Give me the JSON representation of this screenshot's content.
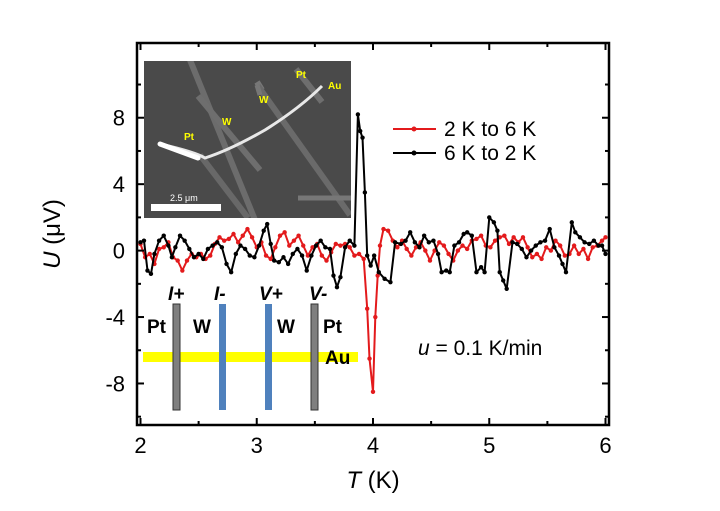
{
  "chart_data": {
    "type": "line",
    "title": "",
    "xlabel_italic": "T",
    "xlabel_unit": " (K)",
    "ylabel_italic": "U",
    "ylabel_unit": " (μV)",
    "xlim": [
      1.97,
      6.03
    ],
    "ylim": [
      -10.5,
      12.5
    ],
    "xticks": [
      2,
      3,
      4,
      5,
      6
    ],
    "yticks": [
      -8,
      -4,
      0,
      4,
      8
    ],
    "xtick_labels": [
      "2",
      "3",
      "4",
      "5",
      "6"
    ],
    "ytick_labels": [
      "-8",
      "-4",
      "0",
      "4",
      "8"
    ],
    "grid": false,
    "legend_position": "top-right",
    "annotation": {
      "italic": "u",
      "text": " = 0.1 K/min"
    },
    "series": [
      {
        "name": "2 K to 6 K",
        "color": "#e31a1c",
        "points": [
          [
            2.0,
            0.4
          ],
          [
            2.04,
            -0.4
          ],
          [
            2.08,
            -0.2
          ],
          [
            2.12,
            -0.8
          ],
          [
            2.16,
            0.1
          ],
          [
            2.2,
            0.2
          ],
          [
            2.24,
            0.5
          ],
          [
            2.28,
            -0.4
          ],
          [
            2.32,
            -0.6
          ],
          [
            2.36,
            -1.2
          ],
          [
            2.4,
            -0.6
          ],
          [
            2.44,
            -0.2
          ],
          [
            2.48,
            -0.4
          ],
          [
            2.52,
            -0.2
          ],
          [
            2.56,
            -0.5
          ],
          [
            2.6,
            -0.3
          ],
          [
            2.64,
            0.4
          ],
          [
            2.68,
            0.8
          ],
          [
            2.72,
            0.6
          ],
          [
            2.76,
            0.7
          ],
          [
            2.8,
            1.0
          ],
          [
            2.84,
            0.5
          ],
          [
            2.88,
            0.9
          ],
          [
            2.92,
            1.3
          ],
          [
            2.96,
            0.8
          ],
          [
            3.0,
            0.2
          ],
          [
            3.04,
            0.5
          ],
          [
            3.08,
            -0.3
          ],
          [
            3.12,
            -0.5
          ],
          [
            3.16,
            0.2
          ],
          [
            3.2,
            0.9
          ],
          [
            3.24,
            1.1
          ],
          [
            3.28,
            0.3
          ],
          [
            3.32,
            0.6
          ],
          [
            3.36,
            0.9
          ],
          [
            3.4,
            0.3
          ],
          [
            3.44,
            -0.3
          ],
          [
            3.48,
            0.2
          ],
          [
            3.52,
            0.4
          ],
          [
            3.56,
            -0.3
          ],
          [
            3.6,
            -0.6
          ],
          [
            3.64,
            -0.1
          ],
          [
            3.68,
            0.4
          ],
          [
            3.72,
            0.3
          ],
          [
            3.76,
            0.4
          ],
          [
            3.8,
            0.2
          ],
          [
            3.84,
            -0.3
          ],
          [
            3.88,
            -0.2
          ],
          [
            3.92,
            -0.5
          ],
          [
            3.95,
            -3.5
          ],
          [
            3.97,
            -6.5
          ],
          [
            4.0,
            -8.5
          ],
          [
            4.02,
            -4.0
          ],
          [
            4.04,
            -1.5
          ],
          [
            4.06,
            0.3
          ],
          [
            4.09,
            1.3
          ],
          [
            4.13,
            1.2
          ],
          [
            4.17,
            0.6
          ],
          [
            4.21,
            0.2
          ],
          [
            4.25,
            0.6
          ],
          [
            4.29,
            0.1
          ],
          [
            4.33,
            -0.3
          ],
          [
            4.37,
            0.2
          ],
          [
            4.41,
            0.5
          ],
          [
            4.45,
            0.0
          ],
          [
            4.49,
            -0.6
          ],
          [
            4.53,
            0.0
          ],
          [
            4.57,
            0.5
          ],
          [
            4.61,
            0.3
          ],
          [
            4.65,
            -0.2
          ],
          [
            4.69,
            -0.6
          ],
          [
            4.73,
            0.0
          ],
          [
            4.77,
            0.3
          ],
          [
            4.81,
            0.1
          ],
          [
            4.85,
            0.6
          ],
          [
            4.89,
            0.7
          ],
          [
            4.93,
            0.9
          ],
          [
            4.97,
            0.3
          ],
          [
            5.01,
            0.2
          ],
          [
            5.05,
            0.6
          ],
          [
            5.09,
            0.8
          ],
          [
            5.13,
            0.9
          ],
          [
            5.17,
            0.4
          ],
          [
            5.21,
            0.8
          ],
          [
            5.25,
            0.5
          ],
          [
            5.29,
            0.8
          ],
          [
            5.33,
            0.2
          ],
          [
            5.37,
            -0.4
          ],
          [
            5.41,
            -0.2
          ],
          [
            5.45,
            -0.5
          ],
          [
            5.49,
            0.2
          ],
          [
            5.53,
            0.0
          ],
          [
            5.57,
            0.6
          ],
          [
            5.61,
            0.3
          ],
          [
            5.65,
            -0.3
          ],
          [
            5.69,
            -0.2
          ],
          [
            5.73,
            0.3
          ],
          [
            5.77,
            -0.2
          ],
          [
            5.81,
            0.1
          ],
          [
            5.85,
            -0.5
          ],
          [
            5.89,
            0.2
          ],
          [
            5.93,
            0.3
          ],
          [
            5.97,
            0.6
          ],
          [
            6.0,
            0.8
          ]
        ]
      },
      {
        "name": "6 K to 2 K",
        "color": "#000000",
        "points": [
          [
            2.0,
            0.5
          ],
          [
            2.03,
            0.6
          ],
          [
            2.06,
            -1.2
          ],
          [
            2.09,
            -1.4
          ],
          [
            2.12,
            -0.2
          ],
          [
            2.16,
            0.6
          ],
          [
            2.2,
            0.9
          ],
          [
            2.24,
            0.3
          ],
          [
            2.27,
            -0.4
          ],
          [
            2.3,
            0.2
          ],
          [
            2.34,
            0.9
          ],
          [
            2.38,
            0.6
          ],
          [
            2.42,
            0.1
          ],
          [
            2.46,
            -0.4
          ],
          [
            2.5,
            -0.2
          ],
          [
            2.54,
            -0.5
          ],
          [
            2.58,
            0.1
          ],
          [
            2.62,
            0.3
          ],
          [
            2.66,
            0.5
          ],
          [
            2.7,
            0.2
          ],
          [
            2.74,
            -0.8
          ],
          [
            2.78,
            -1.3
          ],
          [
            2.82,
            -0.2
          ],
          [
            2.86,
            0.3
          ],
          [
            2.9,
            0.1
          ],
          [
            2.94,
            -0.3
          ],
          [
            2.98,
            -0.4
          ],
          [
            3.02,
            0.3
          ],
          [
            3.06,
            1.2
          ],
          [
            3.09,
            1.6
          ],
          [
            3.12,
            0.4
          ],
          [
            3.15,
            -0.6
          ],
          [
            3.19,
            -0.7
          ],
          [
            3.23,
            -0.4
          ],
          [
            3.27,
            -0.8
          ],
          [
            3.31,
            -0.2
          ],
          [
            3.35,
            0.1
          ],
          [
            3.39,
            -0.3
          ],
          [
            3.43,
            -1.2
          ],
          [
            3.47,
            -0.3
          ],
          [
            3.51,
            0.3
          ],
          [
            3.55,
            0.6
          ],
          [
            3.59,
            0.2
          ],
          [
            3.63,
            0.1
          ],
          [
            3.66,
            -1.5
          ],
          [
            3.69,
            -2.2
          ],
          [
            3.72,
            -1.6
          ],
          [
            3.76,
            0.2
          ],
          [
            3.8,
            0.6
          ],
          [
            3.84,
            0.3
          ],
          [
            3.87,
            8.2
          ],
          [
            3.89,
            7.2
          ],
          [
            3.91,
            6.8
          ],
          [
            3.93,
            3.5
          ],
          [
            3.95,
            -0.3
          ],
          [
            3.98,
            -0.9
          ],
          [
            4.01,
            -0.3
          ],
          [
            4.05,
            -1.3
          ],
          [
            4.1,
            -1.7
          ],
          [
            4.15,
            -1.9
          ],
          [
            4.19,
            0.5
          ],
          [
            4.24,
            0.4
          ],
          [
            4.28,
            0.6
          ],
          [
            4.32,
            1.1
          ],
          [
            4.36,
            0.5
          ],
          [
            4.4,
            0.2
          ],
          [
            4.44,
            0.9
          ],
          [
            4.48,
            0.5
          ],
          [
            4.52,
            0.6
          ],
          [
            4.56,
            -0.2
          ],
          [
            4.59,
            -1.3
          ],
          [
            4.63,
            -1.2
          ],
          [
            4.66,
            -1.3
          ],
          [
            4.7,
            0.3
          ],
          [
            4.74,
            0.5
          ],
          [
            4.78,
            1.0
          ],
          [
            4.81,
            1.1
          ],
          [
            4.85,
            0.9
          ],
          [
            4.89,
            -1.3
          ],
          [
            4.93,
            -1.0
          ],
          [
            4.96,
            -1.3
          ],
          [
            5.0,
            2.0
          ],
          [
            5.04,
            1.7
          ],
          [
            5.07,
            1.2
          ],
          [
            5.09,
            -1.3
          ],
          [
            5.12,
            -1.8
          ],
          [
            5.15,
            -2.3
          ],
          [
            5.2,
            0.5
          ],
          [
            5.24,
            0.4
          ],
          [
            5.28,
            0.1
          ],
          [
            5.32,
            -0.4
          ],
          [
            5.36,
            0.0
          ],
          [
            5.4,
            0.3
          ],
          [
            5.44,
            0.5
          ],
          [
            5.48,
            0.6
          ],
          [
            5.52,
            1.3
          ],
          [
            5.56,
            0.2
          ],
          [
            5.6,
            -0.3
          ],
          [
            5.63,
            -0.8
          ],
          [
            5.66,
            -1.3
          ],
          [
            5.71,
            1.7
          ],
          [
            5.74,
            1.1
          ],
          [
            5.78,
            0.8
          ],
          [
            5.82,
            0.5
          ],
          [
            5.86,
            0.4
          ],
          [
            5.9,
            0.6
          ],
          [
            5.94,
            0.3
          ],
          [
            5.97,
            0.3
          ],
          [
            6.0,
            -0.2
          ]
        ]
      }
    ]
  },
  "inset_image": {
    "labels": [
      "Pt",
      "W",
      "W",
      "Pt",
      "Au"
    ],
    "scale_bar": "2.5 μm",
    "label_color": "#ffff00"
  },
  "schematic": {
    "contacts": [
      {
        "label": "I+",
        "material": "Pt",
        "color": "#7f7f7f"
      },
      {
        "label": "I-",
        "material": "W",
        "color": "#4f81bd"
      },
      {
        "label": "V+",
        "material": "W",
        "color": "#4f81bd"
      },
      {
        "label": "V-",
        "material": "Pt",
        "color": "#7f7f7f"
      }
    ],
    "wire_label": "Au",
    "wire_color": "#ffff00"
  }
}
